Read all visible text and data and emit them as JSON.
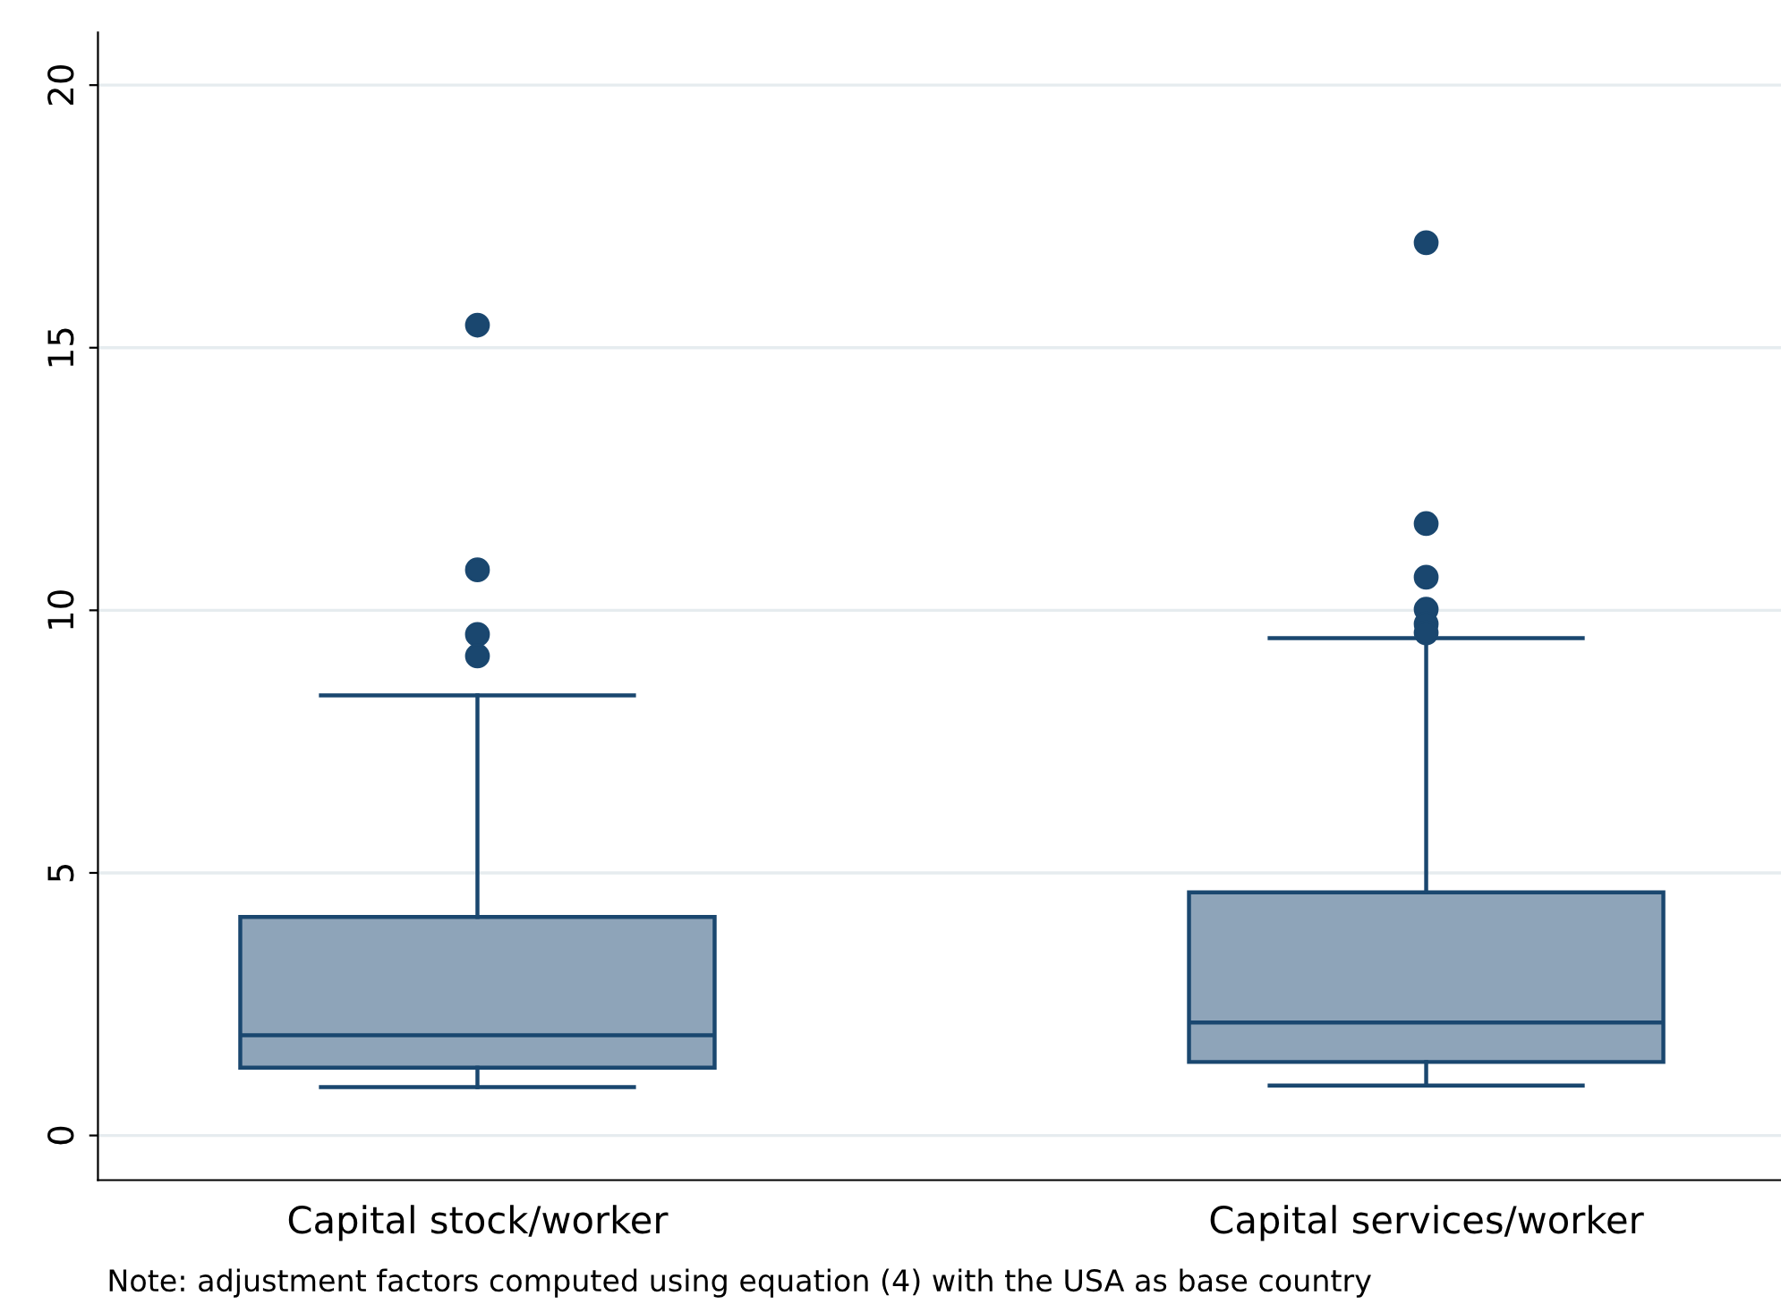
{
  "chart_data": {
    "type": "box",
    "categories": [
      "Capital stock/worker",
      "Capital services/worker"
    ],
    "boxes": [
      {
        "low": 0.92,
        "q1": 1.29,
        "median": 1.91,
        "q3": 4.16,
        "high": 8.38,
        "outliers": [
          15.43,
          10.77,
          9.54,
          9.13
        ]
      },
      {
        "low": 0.95,
        "q1": 1.4,
        "median": 2.15,
        "q3": 4.63,
        "high": 9.47,
        "outliers": [
          17.0,
          11.65,
          10.63,
          10.02,
          9.74,
          9.57
        ]
      }
    ],
    "color": "#8ea4b9",
    "ylim": [
      -0.85,
      21
    ],
    "yticks": [
      0,
      5,
      10,
      15,
      20
    ],
    "grid": "y",
    "legend": false,
    "annotations": [
      "Note: adjustment factors computed using equation (4) with the USA as base country"
    ]
  }
}
